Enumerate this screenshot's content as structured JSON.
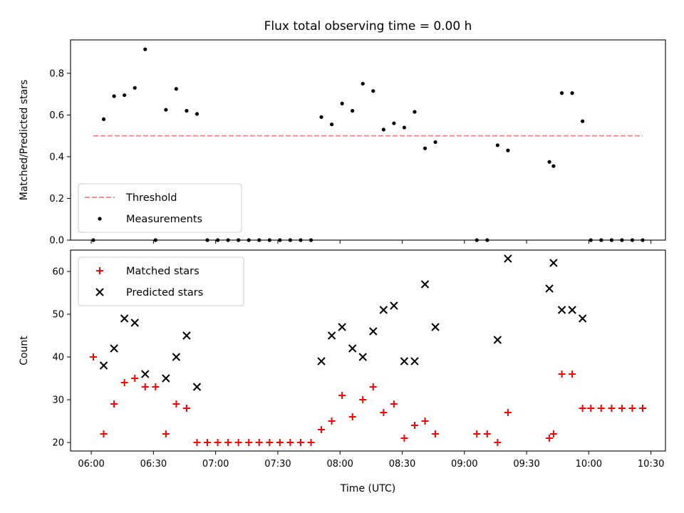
{
  "chart_data": [
    {
      "type": "scatter",
      "title": "Flux total observing time = 0.00 h",
      "xlabel": "",
      "ylabel": "Matched/Predicted stars",
      "ylim": [
        0.0,
        0.96
      ],
      "yticks": [
        0.0,
        0.2,
        0.4,
        0.6,
        0.8
      ],
      "ytick_labels": [
        "0.0",
        "0.2",
        "0.4",
        "0.6",
        "0.8"
      ],
      "xlim": [
        "05:50",
        "10:37"
      ],
      "xticks": [
        "06:00",
        "06:30",
        "07:00",
        "07:30",
        "08:00",
        "08:30",
        "09:00",
        "09:30",
        "10:00",
        "10:30"
      ],
      "show_xtick_labels": false,
      "grid": false,
      "legend": "lower-left",
      "threshold": {
        "name": "Threshold",
        "value": 0.5,
        "x_start": "06:01",
        "x_end": "10:26",
        "color": "#ff7f7f",
        "style": "dashed"
      },
      "series": [
        {
          "name": "Measurements",
          "color": "#000000",
          "marker": "dot",
          "points": [
            [
              "06:01",
              0.0
            ],
            [
              "06:06",
              0.58
            ],
            [
              "06:11",
              0.69
            ],
            [
              "06:16",
              0.695
            ],
            [
              "06:21",
              0.73
            ],
            [
              "06:26",
              0.915
            ],
            [
              "06:31",
              0.0
            ],
            [
              "06:36",
              0.625
            ],
            [
              "06:41",
              0.725
            ],
            [
              "06:46",
              0.62
            ],
            [
              "06:51",
              0.605
            ],
            [
              "06:56",
              0.0
            ],
            [
              "07:01",
              0.0
            ],
            [
              "07:06",
              0.0
            ],
            [
              "07:11",
              0.0
            ],
            [
              "07:16",
              0.0
            ],
            [
              "07:21",
              0.0
            ],
            [
              "07:26",
              0.0
            ],
            [
              "07:31",
              0.0
            ],
            [
              "07:36",
              0.0
            ],
            [
              "07:41",
              0.0
            ],
            [
              "07:46",
              0.0
            ],
            [
              "07:51",
              0.59
            ],
            [
              "07:56",
              0.555
            ],
            [
              "08:01",
              0.655
            ],
            [
              "08:06",
              0.62
            ],
            [
              "08:11",
              0.75
            ],
            [
              "08:16",
              0.715
            ],
            [
              "08:21",
              0.53
            ],
            [
              "08:26",
              0.56
            ],
            [
              "08:31",
              0.54
            ],
            [
              "08:36",
              0.615
            ],
            [
              "08:41",
              0.44
            ],
            [
              "08:46",
              0.47
            ],
            [
              "09:06",
              0.0
            ],
            [
              "09:11",
              0.0
            ],
            [
              "09:16",
              0.455
            ],
            [
              "09:21",
              0.43
            ],
            [
              "09:41",
              0.375
            ],
            [
              "09:43",
              0.355
            ],
            [
              "09:47",
              0.705
            ],
            [
              "09:52",
              0.705
            ],
            [
              "09:57",
              0.57
            ],
            [
              "10:01",
              0.0
            ],
            [
              "10:06",
              0.0
            ],
            [
              "10:11",
              0.0
            ],
            [
              "10:16",
              0.0
            ],
            [
              "10:21",
              0.0
            ],
            [
              "10:26",
              0.0
            ]
          ]
        }
      ]
    },
    {
      "type": "scatter",
      "title": "",
      "xlabel": "Time (UTC)",
      "ylabel": "Count",
      "ylim": [
        18,
        65
      ],
      "yticks": [
        20,
        30,
        40,
        50,
        60
      ],
      "ytick_labels": [
        "20",
        "30",
        "40",
        "50",
        "60"
      ],
      "xlim": [
        "05:50",
        "10:37"
      ],
      "xticks": [
        "06:00",
        "06:30",
        "07:00",
        "07:30",
        "08:00",
        "08:30",
        "09:00",
        "09:30",
        "10:00",
        "10:30"
      ],
      "show_xtick_labels": true,
      "grid": false,
      "legend": "top-left",
      "series": [
        {
          "name": "Matched stars",
          "color": "#ff0000",
          "marker": "plus",
          "points": [
            [
              "06:01",
              40
            ],
            [
              "06:06",
              22
            ],
            [
              "06:11",
              29
            ],
            [
              "06:16",
              34
            ],
            [
              "06:21",
              35
            ],
            [
              "06:26",
              33
            ],
            [
              "06:31",
              33
            ],
            [
              "06:36",
              22
            ],
            [
              "06:41",
              29
            ],
            [
              "06:46",
              28
            ],
            [
              "06:51",
              20
            ],
            [
              "06:56",
              20
            ],
            [
              "07:01",
              20
            ],
            [
              "07:06",
              20
            ],
            [
              "07:11",
              20
            ],
            [
              "07:16",
              20
            ],
            [
              "07:21",
              20
            ],
            [
              "07:26",
              20
            ],
            [
              "07:31",
              20
            ],
            [
              "07:36",
              20
            ],
            [
              "07:41",
              20
            ],
            [
              "07:46",
              20
            ],
            [
              "07:51",
              23
            ],
            [
              "07:56",
              25
            ],
            [
              "08:01",
              31
            ],
            [
              "08:06",
              26
            ],
            [
              "08:11",
              30
            ],
            [
              "08:16",
              33
            ],
            [
              "08:21",
              27
            ],
            [
              "08:26",
              29
            ],
            [
              "08:31",
              21
            ],
            [
              "08:36",
              24
            ],
            [
              "08:41",
              25
            ],
            [
              "08:46",
              22
            ],
            [
              "09:06",
              22
            ],
            [
              "09:11",
              22
            ],
            [
              "09:16",
              20
            ],
            [
              "09:21",
              27
            ],
            [
              "09:41",
              21
            ],
            [
              "09:43",
              22
            ],
            [
              "09:47",
              36
            ],
            [
              "09:52",
              36
            ],
            [
              "09:57",
              28
            ],
            [
              "10:01",
              28
            ],
            [
              "10:06",
              28
            ],
            [
              "10:11",
              28
            ],
            [
              "10:16",
              28
            ],
            [
              "10:21",
              28
            ],
            [
              "10:26",
              28
            ]
          ]
        },
        {
          "name": "Predicted stars",
          "color": "#000000",
          "marker": "x",
          "points": [
            [
              "06:06",
              38
            ],
            [
              "06:11",
              42
            ],
            [
              "06:16",
              49
            ],
            [
              "06:21",
              48
            ],
            [
              "06:26",
              36
            ],
            [
              "06:36",
              35
            ],
            [
              "06:41",
              40
            ],
            [
              "06:46",
              45
            ],
            [
              "06:51",
              33
            ],
            [
              "07:51",
              39
            ],
            [
              "07:56",
              45
            ],
            [
              "08:01",
              47
            ],
            [
              "08:06",
              42
            ],
            [
              "08:11",
              40
            ],
            [
              "08:16",
              46
            ],
            [
              "08:21",
              51
            ],
            [
              "08:26",
              52
            ],
            [
              "08:31",
              39
            ],
            [
              "08:36",
              39
            ],
            [
              "08:41",
              57
            ],
            [
              "08:46",
              47
            ],
            [
              "09:16",
              44
            ],
            [
              "09:21",
              63
            ],
            [
              "09:41",
              56
            ],
            [
              "09:43",
              62
            ],
            [
              "09:47",
              51
            ],
            [
              "09:52",
              51
            ],
            [
              "09:57",
              49
            ]
          ]
        }
      ]
    }
  ]
}
